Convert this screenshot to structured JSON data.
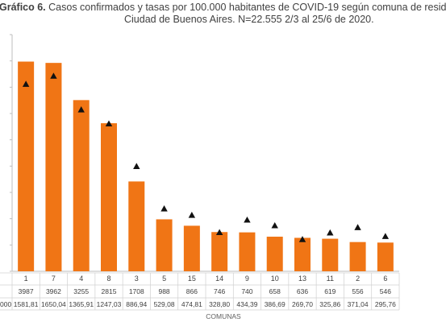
{
  "title_bold": "Gráfico 6.",
  "title_line1": " Casos confirmados y tasas por 100.000 habitantes de COVID-19 según comuna de resid",
  "title_line2": "Ciudad de Buenos Aires. N=22.555 2/3 al 25/6 de 2020.",
  "table_row_label": "000",
  "chart_data": {
    "type": "bar",
    "title": "Gráfico 6. Casos confirmados y tasas por 100.000 habitantes de COVID-19 según comuna de resid Ciudad de Buenos Aires. N=22.555 2/3 al 25/6 de 2020.",
    "xlabel": "COMUNAS",
    "ylabel": "",
    "categories": [
      "1",
      "7",
      "4",
      "8",
      "3",
      "5",
      "15",
      "14",
      "9",
      "10",
      "13",
      "11",
      "2",
      "6"
    ],
    "ylim": [
      0,
      4500
    ],
    "colors": {
      "bar": "#f07515",
      "marker": "#111111"
    },
    "series": [
      {
        "type": "bar",
        "values": [
          3987,
          3962,
          3255,
          2815,
          1708,
          988,
          866,
          746,
          740,
          658,
          636,
          619,
          556,
          546
        ]
      },
      {
        "type": "scatter",
        "marker": "triangle",
        "values": [
          1581.81,
          1650.04,
          1365.91,
          1247.03,
          886.94,
          529.08,
          474.81,
          328.8,
          434.39,
          386.69,
          269.7,
          325.86,
          371.04,
          295.76
        ],
        "value_labels": [
          "1581,81",
          "1650,04",
          "1365,91",
          "1247,03",
          "886,94",
          "529,08",
          "474,81",
          "328,80",
          "434,39",
          "386,69",
          "269,70",
          "325,86",
          "371,04",
          "295,76"
        ]
      }
    ],
    "rate_scale_max": 2000,
    "grid": false,
    "legend": "none"
  }
}
